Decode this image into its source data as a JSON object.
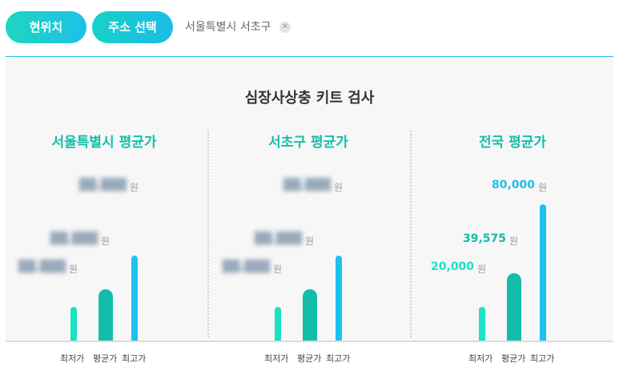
{
  "buttons": {
    "current_location": "현위치",
    "select_address": "주소 선택"
  },
  "address": {
    "text": "서울특별시 서초구",
    "clear_icon": "close-icon"
  },
  "colors": {
    "min": "#19e3c2",
    "avg": "#12bdaa",
    "max": "#1cc2ef"
  },
  "chart_data": {
    "type": "bar",
    "title": "심장사상충 키트 검사",
    "categories": [
      "최저가",
      "평균가",
      "최고가"
    ],
    "unit": "원",
    "groups": [
      {
        "title": "서울특별시 평균가",
        "values": [
          20000,
          30000,
          50000
        ],
        "labels": [
          "██,███",
          "██,███",
          "██,███"
        ],
        "redacted": true
      },
      {
        "title": "서초구 평균가",
        "values": [
          20000,
          30000,
          50000
        ],
        "labels": [
          "██,███",
          "██,███",
          "██,███"
        ],
        "redacted": true
      },
      {
        "title": "전국 평균가",
        "values": [
          20000,
          39575,
          80000
        ],
        "labels": [
          "20,000",
          "39,575",
          "80,000"
        ],
        "redacted": false
      }
    ]
  }
}
